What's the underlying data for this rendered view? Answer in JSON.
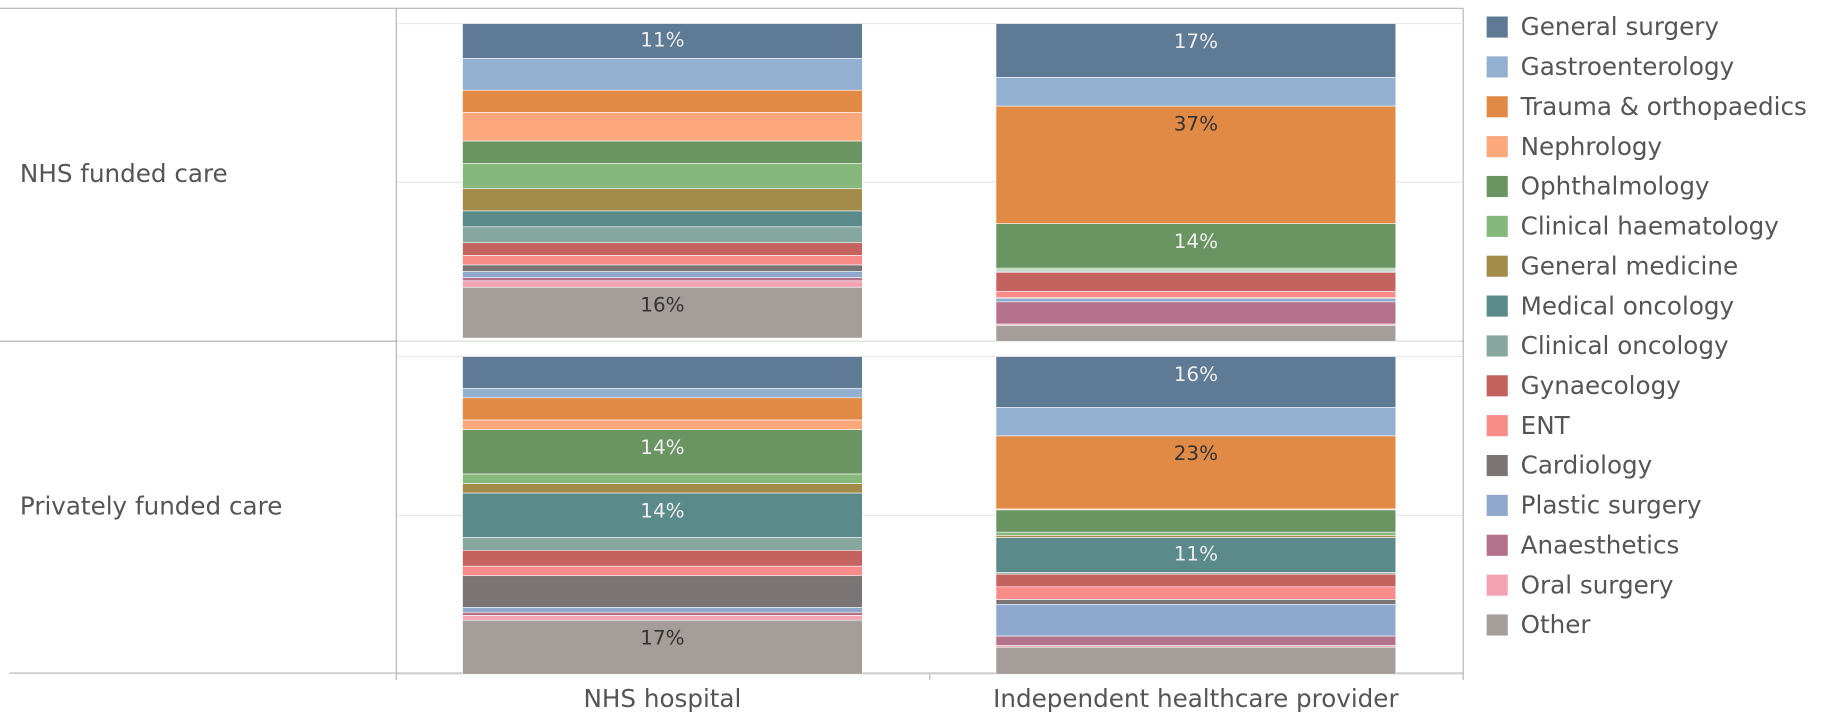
{
  "chart_data": {
    "type": "stacked-bar",
    "rows": [
      "NHS funded care",
      "Privately funded care"
    ],
    "categories": [
      "NHS hospital",
      "Independent healthcare provider"
    ],
    "ylim": [
      0,
      100
    ],
    "yticks": [
      0,
      50,
      100
    ],
    "grid": true,
    "legend": "right",
    "series": [
      {
        "name": "General surgery",
        "color": "#5f7a95",
        "values": [
          [
            11,
            17
          ],
          [
            10,
            16
          ]
        ],
        "value_labels": [
          [
            "11%",
            "17%"
          ],
          [
            null,
            "16%"
          ]
        ]
      },
      {
        "name": "Gastroenterology",
        "color": "#94b0d0",
        "values": [
          [
            10,
            9
          ],
          [
            3,
            9
          ]
        ]
      },
      {
        "name": "Trauma & orthopaedics",
        "color": "#e08a45",
        "values": [
          [
            7,
            37
          ],
          [
            7,
            23
          ]
        ],
        "value_labels": [
          [
            null,
            "37%"
          ],
          [
            null,
            "23%"
          ]
        ]
      },
      {
        "name": "Nephrology",
        "color": "#fda77c",
        "values": [
          [
            9,
            0
          ],
          [
            3,
            0.3
          ]
        ]
      },
      {
        "name": "Ophthalmology",
        "color": "#6a9462",
        "values": [
          [
            7,
            14
          ],
          [
            14,
            7
          ]
        ],
        "value_labels": [
          [
            null,
            "14%"
          ],
          [
            "14%",
            null
          ]
        ]
      },
      {
        "name": "Clinical haematology",
        "color": "#86b77c",
        "values": [
          [
            8,
            0.5
          ],
          [
            3,
            1
          ]
        ]
      },
      {
        "name": "General medicine",
        "color": "#a38c4a",
        "values": [
          [
            7,
            0.2
          ],
          [
            3,
            0.7
          ]
        ]
      },
      {
        "name": "Medical oncology",
        "color": "#5a8a8a",
        "values": [
          [
            5,
            0.3
          ],
          [
            14,
            11
          ]
        ],
        "value_labels": [
          [
            null,
            null
          ],
          [
            "14%",
            "11%"
          ]
        ]
      },
      {
        "name": "Clinical oncology",
        "color": "#85a79e",
        "values": [
          [
            5,
            0.3
          ],
          [
            4,
            0.5
          ]
        ]
      },
      {
        "name": "Gynaecology",
        "color": "#c4625f",
        "values": [
          [
            4,
            6
          ],
          [
            5,
            4
          ]
        ]
      },
      {
        "name": "ENT",
        "color": "#f98b88",
        "values": [
          [
            3,
            2
          ],
          [
            3,
            4
          ]
        ]
      },
      {
        "name": "Cardiology",
        "color": "#7a7574",
        "values": [
          [
            2,
            0.3
          ],
          [
            10,
            1.5
          ]
        ]
      },
      {
        "name": "Plastic surgery",
        "color": "#8fa9ce",
        "values": [
          [
            2,
            1
          ],
          [
            1.5,
            10
          ]
        ]
      },
      {
        "name": "Anaesthetics",
        "color": "#b3728a",
        "values": [
          [
            1,
            7
          ],
          [
            1,
            3
          ]
        ]
      },
      {
        "name": "Oral surgery",
        "color": "#f4a3b4",
        "values": [
          [
            2,
            0.4
          ],
          [
            1.5,
            0.5
          ]
        ]
      },
      {
        "name": "Other",
        "color": "#a59d9a",
        "values": [
          [
            16,
            5
          ],
          [
            17,
            8.5
          ]
        ],
        "value_labels": [
          [
            "16%",
            null
          ],
          [
            "17%",
            null
          ]
        ]
      }
    ]
  }
}
